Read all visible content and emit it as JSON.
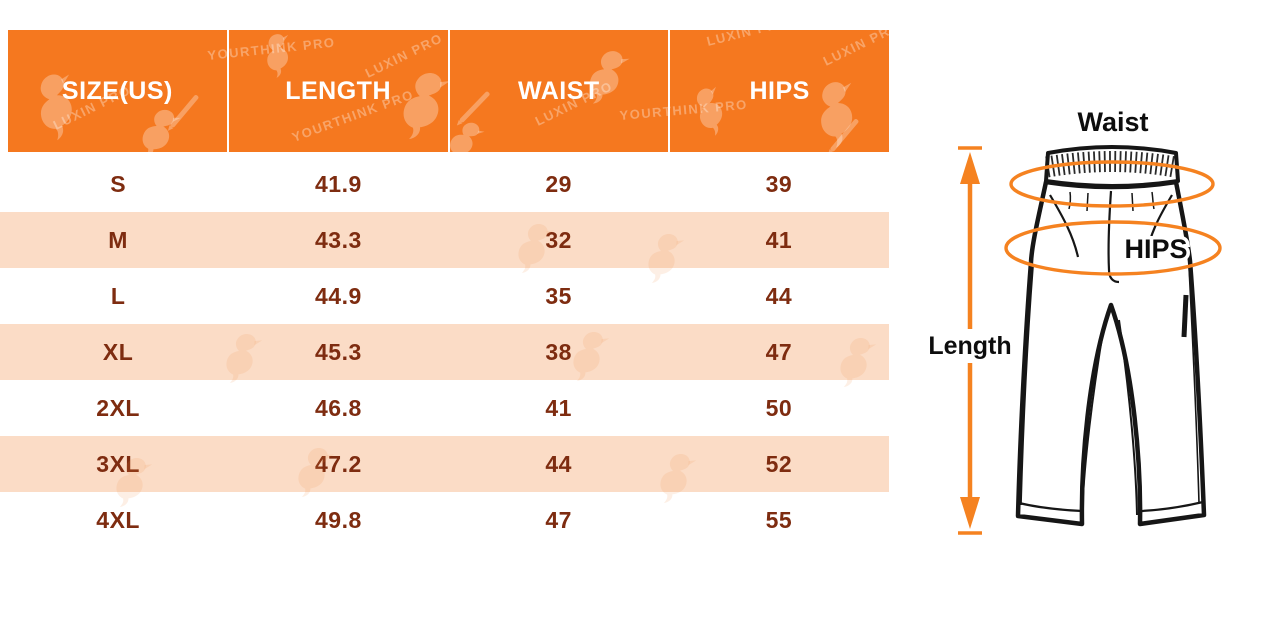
{
  "table": {
    "headers": [
      "SIZE(US)",
      "LENGTH",
      "WAIST",
      "HIPS"
    ],
    "rows": [
      {
        "size": "S",
        "length": "41.9",
        "waist": "29",
        "hips": "39"
      },
      {
        "size": "M",
        "length": "43.3",
        "waist": "32",
        "hips": "41"
      },
      {
        "size": "L",
        "length": "44.9",
        "waist": "35",
        "hips": "44"
      },
      {
        "size": "XL",
        "length": "45.3",
        "waist": "38",
        "hips": "47"
      },
      {
        "size": "2XL",
        "length": "46.8",
        "waist": "41",
        "hips": "50"
      },
      {
        "size": "3XL",
        "length": "47.2",
        "waist": "44",
        "hips": "52"
      },
      {
        "size": "4XL",
        "length": "49.8",
        "waist": "47",
        "hips": "55"
      }
    ]
  },
  "diagram": {
    "waist_label": "Waist",
    "hips_label": "HIPS",
    "length_label": "Length"
  },
  "watermark": {
    "brand1": "LUXIN PRO",
    "brand2": "YOURTHINK PRO"
  },
  "colors": {
    "header_bg": "#f5781f",
    "row_peach": "#fbdcc6",
    "text_brown": "#7e2c10",
    "accent_orange": "#f58220"
  }
}
